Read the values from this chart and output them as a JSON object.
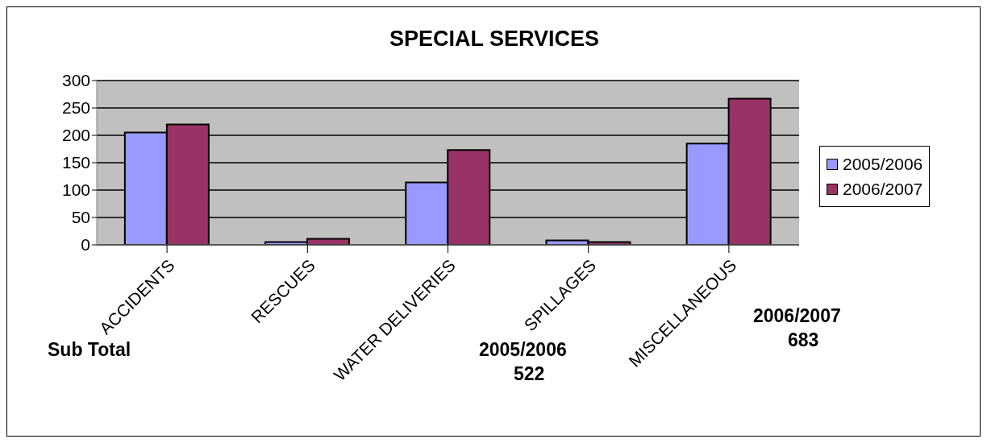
{
  "chart_data": {
    "type": "bar",
    "title": "SPECIAL SERVICES",
    "categories": [
      "ACCIDENTS",
      "RESCUES",
      "WATER DELIVERIES",
      "SPILLAGES",
      "MISCELLANEOUS"
    ],
    "series": [
      {
        "name": "2005/2006",
        "color": "#9999ff",
        "values": [
          205,
          5,
          114,
          8,
          185
        ]
      },
      {
        "name": "2006/2007",
        "color": "#993366",
        "values": [
          220,
          11,
          173,
          5,
          267
        ]
      }
    ],
    "ylim": [
      0,
      300
    ],
    "yticks": [
      0,
      50,
      100,
      150,
      200,
      250,
      300
    ],
    "grid": "y",
    "legend": "right",
    "annotations": [
      "Sub Total",
      "2005/2006",
      "522",
      "2006/2007",
      "683"
    ]
  }
}
